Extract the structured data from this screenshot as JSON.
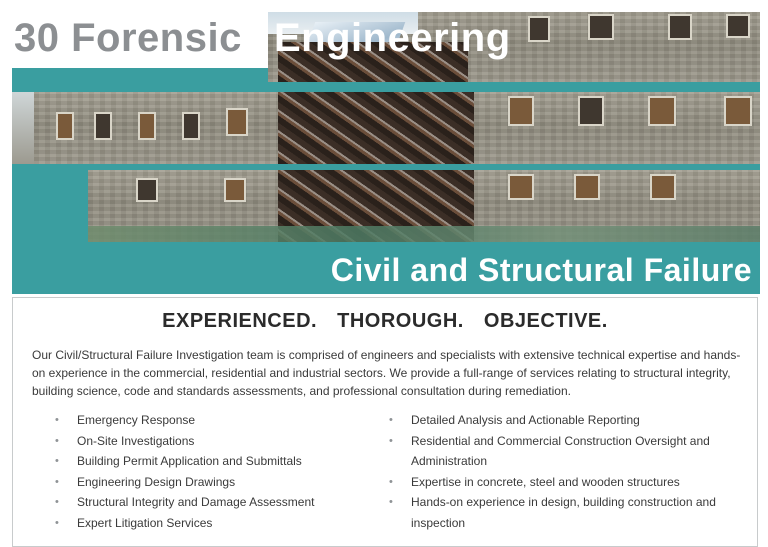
{
  "banner": {
    "title_part1": "30 Forensic",
    "title_part2": "Engineering",
    "subtitle": "Civil and Structural Failure",
    "teal_color": "#3a9ea0"
  },
  "content": {
    "tagline": "EXPERIENCED.  THOROUGH.  OBJECTIVE.",
    "intro": "Our Civil/Structural Failure Investigation team is comprised of engineers and specialists with extensive technical expertise and hands-on experience in the commercial, residential and industrial sectors. We provide a full-range of services relating to structural integrity, building science, code and standards assessments, and professional consultation during remediation.",
    "services_left": [
      "Emergency Response",
      "On-Site Investigations",
      "Building Permit Application and Submittals",
      "Engineering Design Drawings",
      "Structural Integrity and Damage Assessment",
      "Expert Litigation Services"
    ],
    "services_right": [
      "Detailed Analysis and Actionable Reporting",
      "Residential and Commercial Construction Oversight and Administration",
      "Expertise in concrete, steel and wooden structures",
      "Hands-on experience in design, building construction and inspection"
    ]
  }
}
